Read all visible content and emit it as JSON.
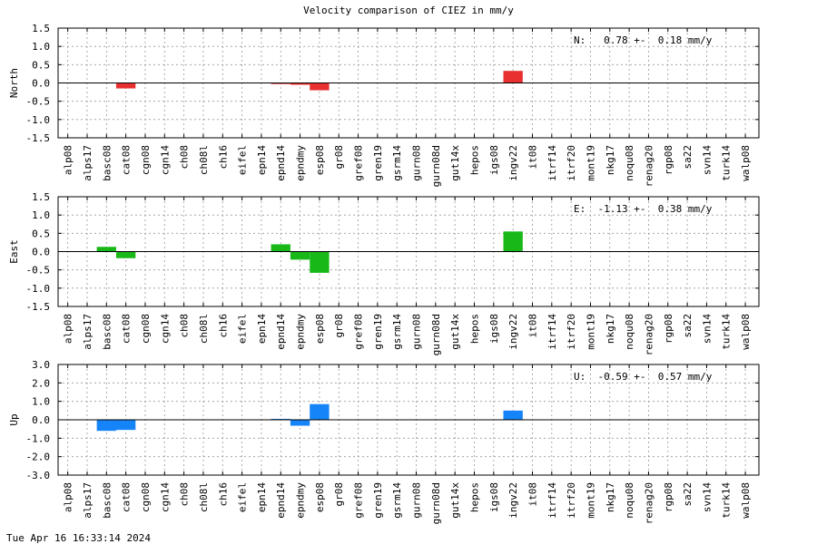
{
  "title": "Velocity comparison of CIEZ in mm/y",
  "timestamp": "Tue Apr 16 16:33:14 2024",
  "chart_data": [
    {
      "type": "bar",
      "ylabel": "North",
      "ylim": [
        -1.5,
        1.5
      ],
      "yticks": [
        "1.5",
        "1.0",
        "0.5",
        "0.0",
        "-0.5",
        "-1.0",
        "-1.5"
      ],
      "grid": true,
      "color": "#e83030",
      "annotation": "N:   0.78 +-  0.18 mm/y",
      "categories": [
        "alp08",
        "alps17",
        "basc08",
        "cat08",
        "cgn08",
        "cgn14",
        "ch08",
        "ch08l",
        "ch16",
        "eifel",
        "epn14",
        "epnd14",
        "epndmy",
        "esp08",
        "gr08",
        "gref08",
        "gren19",
        "gsrm14",
        "gurn08",
        "gurn08d",
        "gut14x",
        "hepos",
        "igs08",
        "ingv22",
        "it08",
        "itrf14",
        "itrf20",
        "mont19",
        "nkg17",
        "noqu08",
        "renag20",
        "rgp08",
        "sa22",
        "svn14",
        "turk14",
        "walp08"
      ],
      "values": [
        0,
        0,
        0,
        -0.15,
        0,
        0,
        0,
        0,
        0,
        0,
        0,
        -0.03,
        -0.05,
        -0.2,
        0,
        0,
        0,
        0,
        0,
        0,
        0,
        0,
        0,
        0.33,
        0,
        0,
        0,
        0,
        0,
        0,
        0,
        0,
        0,
        0,
        0,
        0
      ]
    },
    {
      "type": "bar",
      "ylabel": "East",
      "ylim": [
        -1.5,
        1.5
      ],
      "yticks": [
        "1.5",
        "1.0",
        "0.5",
        "0.0",
        "-0.5",
        "-1.0",
        "-1.5"
      ],
      "grid": true,
      "color": "#18b818",
      "annotation": "E:  -1.13 +-  0.38 mm/y",
      "categories": [
        "alp08",
        "alps17",
        "basc08",
        "cat08",
        "cgn08",
        "cgn14",
        "ch08",
        "ch08l",
        "ch16",
        "eifel",
        "epn14",
        "epnd14",
        "epndmy",
        "esp08",
        "gr08",
        "gref08",
        "gren19",
        "gsrm14",
        "gurn08",
        "gurn08d",
        "gut14x",
        "hepos",
        "igs08",
        "ingv22",
        "it08",
        "itrf14",
        "itrf20",
        "mont19",
        "nkg17",
        "noqu08",
        "renag20",
        "rgp08",
        "sa22",
        "svn14",
        "turk14",
        "walp08"
      ],
      "values": [
        0,
        0,
        0.13,
        -0.18,
        0,
        0,
        0,
        0,
        0,
        0,
        0,
        0.2,
        -0.22,
        -0.58,
        0,
        0,
        0,
        0,
        0,
        0,
        0,
        0,
        0,
        0.55,
        0,
        0,
        0,
        0,
        0,
        0,
        0,
        0,
        0,
        0,
        0,
        0
      ]
    },
    {
      "type": "bar",
      "ylabel": "Up",
      "ylim": [
        -3.0,
        3.0
      ],
      "yticks": [
        "3.0",
        "2.0",
        "1.0",
        "0.0",
        "-1.0",
        "-2.0",
        "-3.0"
      ],
      "grid": true,
      "color": "#1484f8",
      "annotation": "U:  -0.59 +-  0.57 mm/y",
      "categories": [
        "alp08",
        "alps17",
        "basc08",
        "cat08",
        "cgn08",
        "cgn14",
        "ch08",
        "ch08l",
        "ch16",
        "eifel",
        "epn14",
        "epnd14",
        "epndmy",
        "esp08",
        "gr08",
        "gref08",
        "gren19",
        "gsrm14",
        "gurn08",
        "gurn08d",
        "gut14x",
        "hepos",
        "igs08",
        "ingv22",
        "it08",
        "itrf14",
        "itrf20",
        "mont19",
        "nkg17",
        "noqu08",
        "renag20",
        "rgp08",
        "sa22",
        "svn14",
        "turk14",
        "walp08"
      ],
      "values": [
        0,
        0,
        -0.6,
        -0.55,
        0,
        0,
        0,
        0,
        0,
        0,
        0,
        0.05,
        -0.32,
        0.85,
        0,
        0,
        0,
        0,
        0,
        0,
        0,
        0,
        0,
        0.5,
        0,
        0,
        0,
        0,
        0,
        0,
        0,
        0,
        0,
        0,
        0,
        0
      ]
    }
  ]
}
